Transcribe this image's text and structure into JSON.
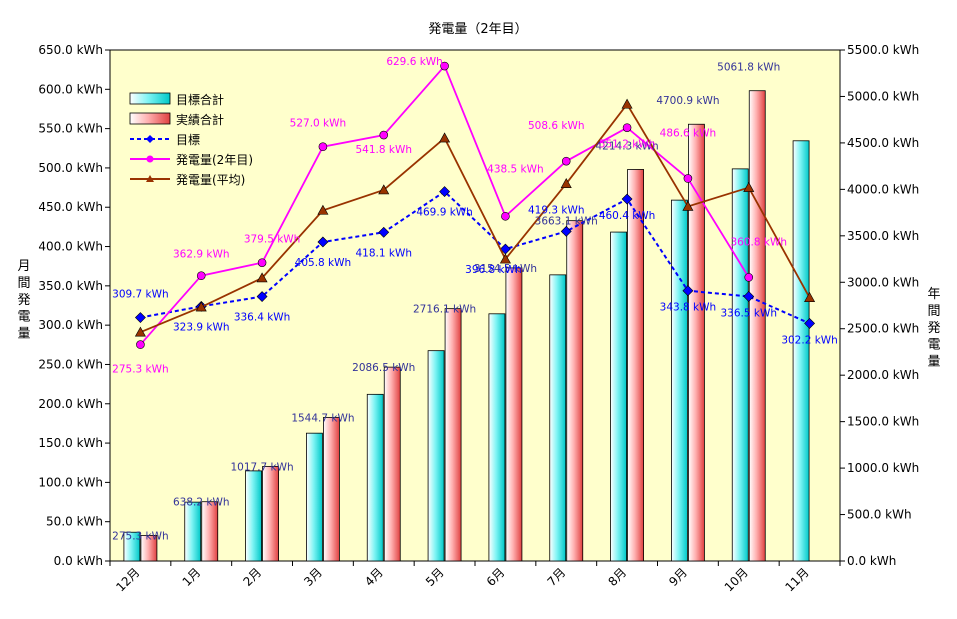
{
  "chart_data": {
    "type": "bar+line",
    "title": "発電量（2年目）",
    "ylabel_left": "月間発電量",
    "ylabel_right": "年間発電量",
    "categories": [
      "12月",
      "1月",
      "2月",
      "3月",
      "4月",
      "5月",
      "6月",
      "7月",
      "8月",
      "9月",
      "10月",
      "11月"
    ],
    "y_left": {
      "min": 0,
      "max": 650,
      "step": 50,
      "unit": "kWh"
    },
    "y_right": {
      "min": 0,
      "max": 5500,
      "step": 500,
      "unit": "kWh"
    },
    "legend": {
      "placement": "top-left",
      "items": [
        "目標合計",
        "実績合計",
        "目標",
        "発電量(2年目)",
        "発電量(平均)"
      ]
    },
    "bar_series": [
      {
        "name": "目標合計",
        "axis": "right",
        "color": "#00e0e0",
        "values": [
          309.7,
          633.6,
          970.0,
          1375.8,
          1793.9,
          2263.8,
          2660.6,
          3079.9,
          3540.3,
          3884.1,
          4220.6,
          4522.8
        ],
        "labels": [
          "",
          "",
          "",
          "",
          "",
          "",
          "",
          "",
          "",
          "",
          "",
          ""
        ]
      },
      {
        "name": "実績合計",
        "axis": "right",
        "color": "#ff7070",
        "values": [
          275.3,
          638.2,
          1017.7,
          1544.7,
          2086.5,
          2716.1,
          3154.5,
          3663.1,
          4214.3,
          4700.9,
          5061.8,
          null
        ],
        "labels": [
          "275.3 kWh",
          "638.2 kWh",
          "1017.7 kWh",
          "1544.7 kWh",
          "2086.5 kWh",
          "2716.1 kWh",
          "3154.5 kWh",
          "3663.1 kWh",
          "4214.3 kWh",
          "4700.9 kWh",
          "5061.8 kWh",
          ""
        ]
      }
    ],
    "line_series": [
      {
        "name": "目標",
        "axis": "left",
        "color": "#0000ff",
        "dashed": true,
        "marker": "diamond",
        "values": [
          309.7,
          323.9,
          336.4,
          405.8,
          418.1,
          469.9,
          396.8,
          419.3,
          460.4,
          343.8,
          336.5,
          302.2
        ],
        "labels": [
          "309.7 kWh",
          "323.9 kWh",
          "336.4 kWh",
          "405.8 kWh",
          "418.1 kWh",
          "469.9 kWh",
          "396.8 kWh",
          "419.3 kWh",
          "460.4 kWh",
          "343.8 kWh",
          "336.5 kWh",
          "302.2 kWh"
        ]
      },
      {
        "name": "発電量(2年目)",
        "axis": "left",
        "color": "#ff00ff",
        "dashed": false,
        "marker": "circle",
        "values": [
          275.3,
          362.9,
          379.5,
          527.0,
          541.8,
          629.6,
          438.5,
          508.6,
          551.2,
          486.6,
          360.8,
          null
        ],
        "labels": [
          "275.3 kWh",
          "362.9 kWh",
          "379.5 kWh",
          "527.0 kWh",
          "541.8 kWh",
          "629.6 kWh",
          "438.5 kWh",
          "508.6 kWh",
          "551.2 kWh",
          "486.6 kWh",
          "360.8 kWh",
          ""
        ]
      },
      {
        "name": "発電量(平均)",
        "axis": "left",
        "color": "#993300",
        "dashed": false,
        "marker": "triangle",
        "values": [
          291,
          323,
          360,
          446,
          472,
          538,
          384,
          480,
          581,
          451,
          475,
          335
        ],
        "labels": [
          "",
          "",
          "",
          "",
          "",
          "",
          "",
          "",
          "",
          "",
          "",
          ""
        ]
      }
    ]
  }
}
